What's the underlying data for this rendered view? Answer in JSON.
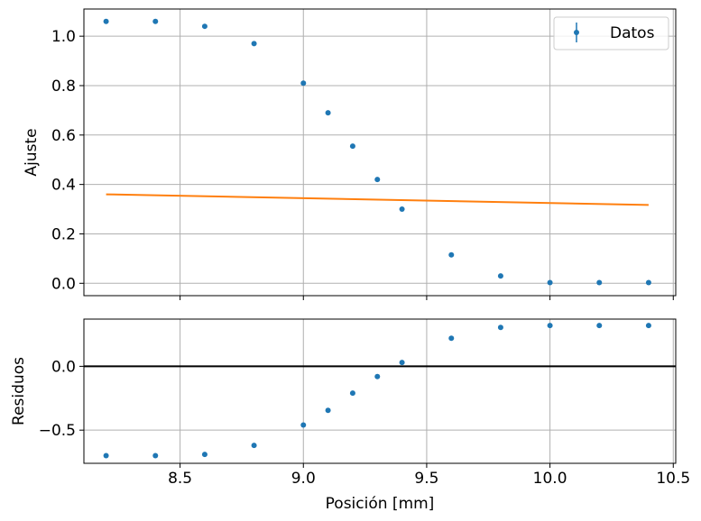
{
  "chart_data": [
    {
      "type": "scatter",
      "panel": "top",
      "title": "",
      "xlabel": "",
      "ylabel": "Ajuste",
      "xlim": [
        8.11,
        10.51
      ],
      "ylim": [
        -0.05,
        1.11
      ],
      "xticks": [
        8.5,
        9.0,
        9.5,
        10.0,
        10.5
      ],
      "yticks": [
        0.0,
        0.2,
        0.4,
        0.6,
        0.8,
        1.0
      ],
      "ytick_labels": [
        "0.0",
        "0.2",
        "0.4",
        "0.6",
        "0.8",
        "1.0"
      ],
      "grid": true,
      "legend": {
        "placement": "top-right",
        "entries": [
          "Datos"
        ]
      },
      "series": [
        {
          "name": "Datos",
          "kind": "errorbar-points",
          "color": "#1f77b4",
          "x": [
            8.2,
            8.4,
            8.6,
            8.8,
            9.0,
            9.1,
            9.2,
            9.3,
            9.4,
            9.6,
            9.8,
            10.0,
            10.2,
            10.4
          ],
          "y": [
            1.06,
            1.06,
            1.04,
            0.97,
            0.81,
            0.69,
            0.555,
            0.42,
            0.3,
            0.115,
            0.03,
            0.003,
            0.003,
            0.003
          ]
        },
        {
          "kind": "line",
          "color": "#ff7f0e",
          "x": [
            8.2,
            10.4
          ],
          "y": [
            0.36,
            0.317
          ]
        }
      ]
    },
    {
      "type": "scatter",
      "panel": "bottom",
      "title": "",
      "xlabel": "Posición [mm]",
      "ylabel": "Residuos",
      "xlim": [
        8.11,
        10.51
      ],
      "ylim": [
        -0.76,
        0.37
      ],
      "xticks": [
        8.5,
        9.0,
        9.5,
        10.0,
        10.5
      ],
      "xtick_labels": [
        "8.5",
        "9.0",
        "9.5",
        "10.0",
        "10.5"
      ],
      "yticks": [
        0.0,
        -0.5
      ],
      "ytick_labels": [
        "0.0",
        "−0.5"
      ],
      "grid": true,
      "reference_line": {
        "y": 0.0,
        "color": "#000000"
      },
      "series": [
        {
          "kind": "points",
          "color": "#1f77b4",
          "x": [
            8.2,
            8.4,
            8.6,
            8.8,
            9.0,
            9.1,
            9.2,
            9.3,
            9.4,
            9.6,
            9.8,
            10.0,
            10.2,
            10.4
          ],
          "y": [
            -0.7,
            -0.7,
            -0.69,
            -0.62,
            -0.46,
            -0.345,
            -0.21,
            -0.08,
            0.03,
            0.22,
            0.305,
            0.32,
            0.32,
            0.32
          ]
        }
      ]
    }
  ]
}
